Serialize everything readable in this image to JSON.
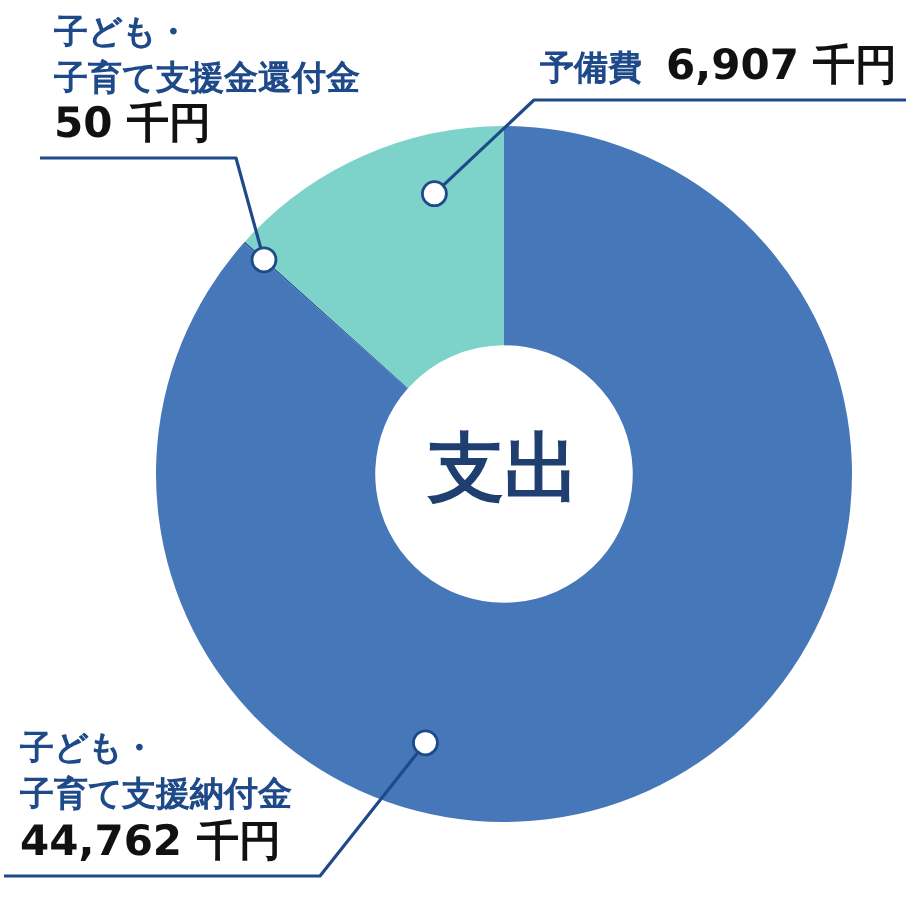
{
  "chart_data": {
    "type": "donut",
    "title": "支出",
    "categories": [
      "子ども・子育て支援納付金",
      "子ども・子育て支援金還付金",
      "予備費"
    ],
    "values": [
      44762,
      50,
      6907
    ],
    "colors": [
      "#4677b8",
      "#2f5f9e",
      "#7dd3c9"
    ],
    "value_labels": [
      "44,762 千円",
      "50 千円",
      "6,907 千円"
    ]
  }
}
